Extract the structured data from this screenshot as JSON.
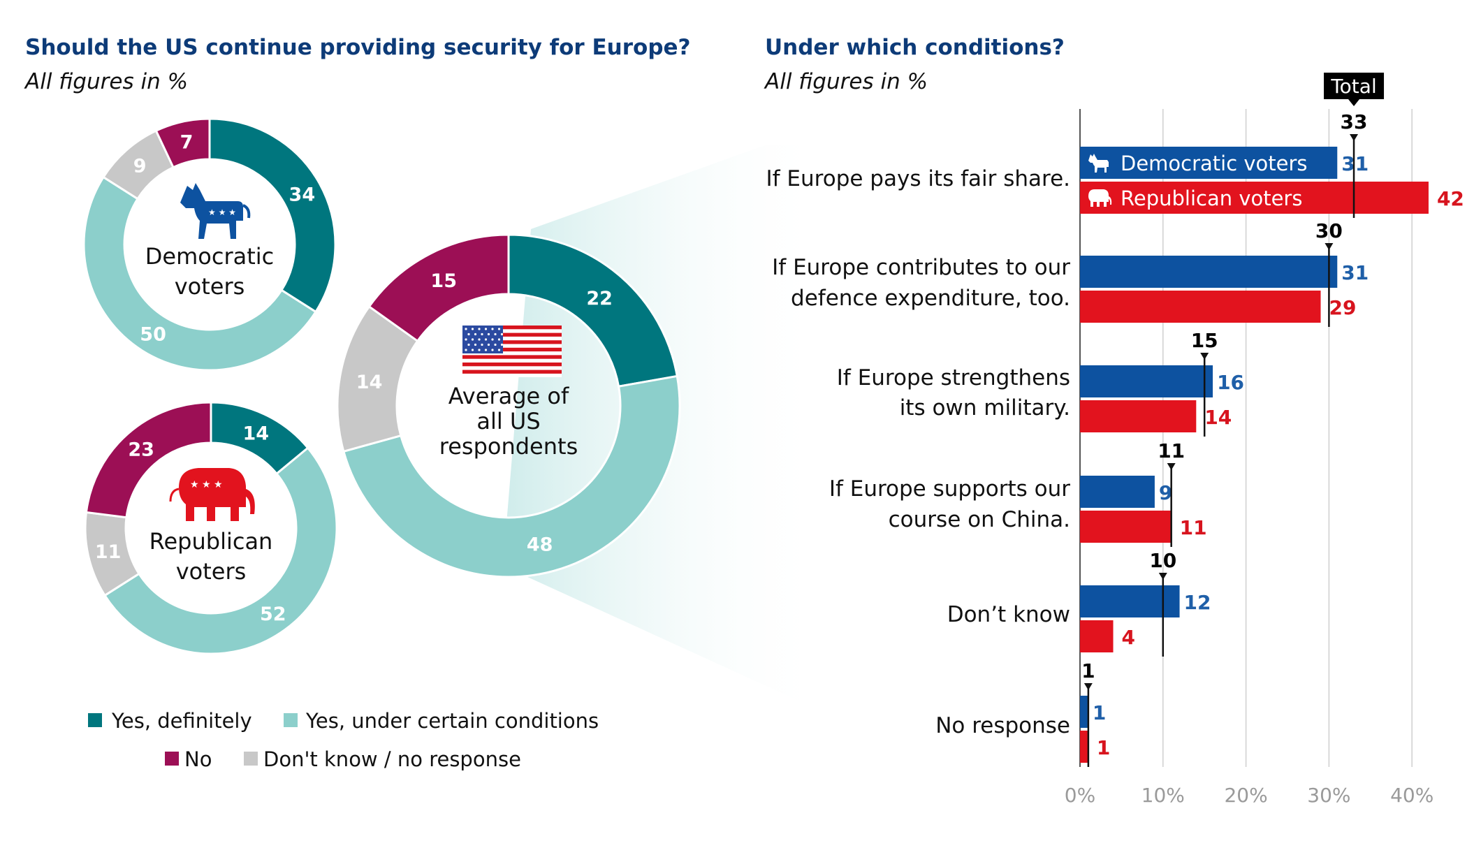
{
  "colors": {
    "yes_definitely": "#00767e",
    "yes_conditions": "#8ccfcb",
    "no": "#9c0f55",
    "dont_know": "#c8c8c8",
    "democratic": "#0d52a0",
    "republican": "#e2131e",
    "title": "#0d3b78"
  },
  "chart_data": [
    {
      "type": "pie",
      "title": "Should the US continue providing security for Europe?",
      "subtitle": "All figures in %",
      "legend": [
        "Yes, definitely",
        "Yes, under certain conditions",
        "No",
        "Don't know / no response"
      ],
      "donuts": [
        {
          "id": "dem",
          "center_label": [
            "Democratic",
            "voters"
          ],
          "icon": "donkey-icon",
          "slices": [
            {
              "key": "yes_definitely",
              "value": 34
            },
            {
              "key": "yes_conditions",
              "value": 50
            },
            {
              "key": "dont_know",
              "value": 9
            },
            {
              "key": "no",
              "value": 7
            }
          ]
        },
        {
          "id": "rep",
          "center_label": [
            "Republican",
            "voters"
          ],
          "icon": "elephant-icon",
          "slices": [
            {
              "key": "yes_definitely",
              "value": 14
            },
            {
              "key": "yes_conditions",
              "value": 52
            },
            {
              "key": "dont_know",
              "value": 11
            },
            {
              "key": "no",
              "value": 23
            }
          ]
        },
        {
          "id": "all",
          "center_label": [
            "Average of",
            "all US",
            "respondents"
          ],
          "icon": "us-flag-icon",
          "slices": [
            {
              "key": "yes_definitely",
              "value": 22
            },
            {
              "key": "yes_conditions",
              "value": 48
            },
            {
              "key": "dont_know",
              "value": 14
            },
            {
              "key": "no",
              "value": 15
            }
          ]
        }
      ]
    },
    {
      "type": "bar",
      "orientation": "horizontal",
      "title": "Under which conditions?",
      "subtitle": "All figures in %",
      "total_tag": "Total",
      "xlim": [
        0,
        40
      ],
      "xticks": [
        "0%",
        "10%",
        "20%",
        "30%",
        "40%"
      ],
      "grid": true,
      "categories": [
        [
          "If Europe pays its fair share."
        ],
        [
          "If Europe contributes to our",
          "defence expenditure, too."
        ],
        [
          "If Europe strengthens",
          "its own military."
        ],
        [
          "If Europe supports our",
          "course on China."
        ],
        [
          "Don’t know"
        ],
        [
          "No response"
        ]
      ],
      "series": [
        {
          "name": "Democratic voters",
          "key": "democratic",
          "values": [
            31,
            31,
            16,
            9,
            12,
            1
          ]
        },
        {
          "name": "Republican voters",
          "key": "republican",
          "values": [
            42,
            29,
            14,
            11,
            4,
            1
          ]
        }
      ],
      "total": [
        33,
        30,
        15,
        11,
        10,
        1
      ]
    }
  ]
}
